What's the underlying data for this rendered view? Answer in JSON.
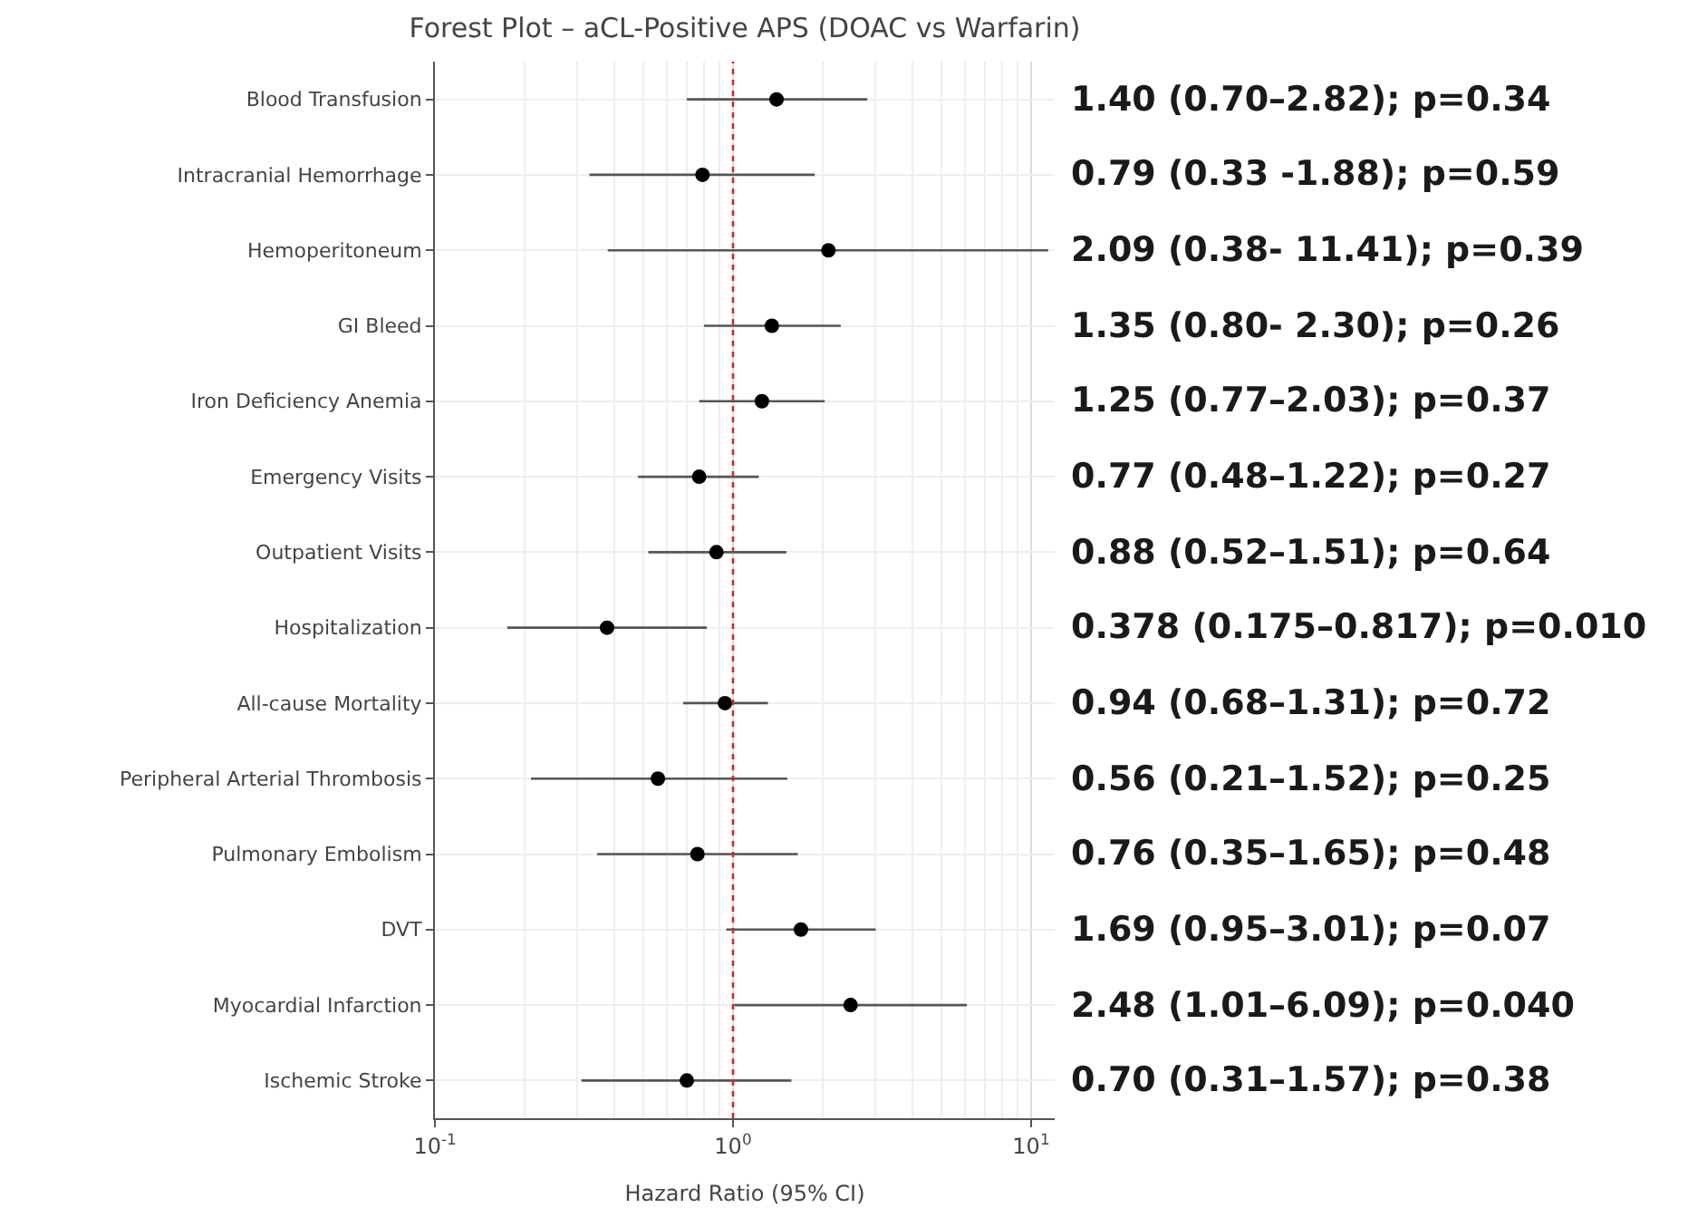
{
  "chart_data": {
    "type": "scatter",
    "orientation": "horizontal",
    "title": "Forest Plot – aCL-Positive APS (DOAC vs Warfarin)",
    "xlabel": "Hazard Ratio (95% CI)",
    "categories": [
      "Blood Transfusion",
      "Intracranial Hemorrhage",
      "Hemoperitoneum",
      "GI Bleed",
      "Iron Deficiency Anemia",
      "Emergency Visits",
      "Outpatient Visits",
      "Hospitalization",
      "All-cause Mortality",
      "Peripheral Arterial Thrombosis",
      "Pulmonary Embolism",
      "DVT",
      "Myocardial Infarction",
      "Ischemic Stroke"
    ],
    "values": [
      1.4,
      0.79,
      2.09,
      1.35,
      1.25,
      0.77,
      0.88,
      0.378,
      0.94,
      0.56,
      0.76,
      1.69,
      2.48,
      0.7
    ],
    "errors": [
      [
        0.7,
        2.82
      ],
      [
        0.33,
        1.88
      ],
      [
        0.38,
        11.41
      ],
      [
        0.8,
        2.3
      ],
      [
        0.77,
        2.03
      ],
      [
        0.48,
        1.22
      ],
      [
        0.52,
        1.51
      ],
      [
        0.175,
        0.817
      ],
      [
        0.68,
        1.31
      ],
      [
        0.21,
        1.52
      ],
      [
        0.35,
        1.65
      ],
      [
        0.95,
        3.01
      ],
      [
        1.01,
        6.09
      ],
      [
        0.31,
        1.57
      ]
    ],
    "annotations": [
      "1.40 (0.70–2.82); p=0.34",
      "0.79 (0.33 -1.88); p=0.59",
      "2.09 (0.38- 11.41); p=0.39",
      "1.35 (0.80- 2.30); p=0.26",
      "1.25 (0.77–2.03); p=0.37",
      "0.77 (0.48–1.22); p=0.27",
      "0.88 (0.52–1.51); p=0.64",
      "0.378 (0.175–0.817); p=0.010",
      "0.94 (0.68–1.31); p=0.72",
      "0.56 (0.21–1.52); p=0.25",
      "0.76 (0.35–1.65); p=0.48",
      "1.69 (0.95–3.01); p=0.07",
      "2.48 (1.01–6.09); p=0.040",
      "0.70 (0.31–1.57); p=0.38"
    ],
    "color": "#000000",
    "marker": "circle",
    "log": "x",
    "xlim": [
      0.1,
      12
    ],
    "xticks": [
      {
        "value": 0.1,
        "label": "10$^{-1}$"
      },
      {
        "value": 1,
        "label": "10$^{0}$"
      },
      {
        "value": 10,
        "label": "10$^{1}$"
      }
    ],
    "ref_lines": [
      {
        "axis": "x",
        "value": 1,
        "label": null,
        "color": "#d62728",
        "line_style": "dotted"
      }
    ],
    "grid": true
  }
}
